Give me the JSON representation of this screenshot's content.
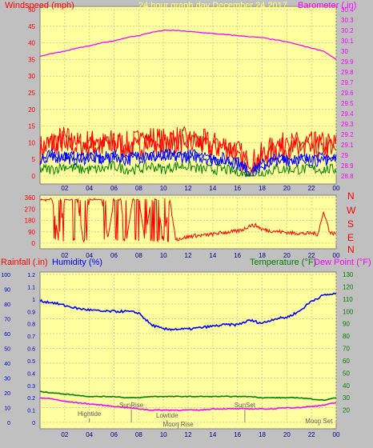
{
  "header": {
    "left_label": "Windspeed (mph)",
    "center_label": "24 hour graph day   December 24 2017",
    "right_label": "Barometer (.in)"
  },
  "panel2": {
    "compass": [
      "N",
      "W",
      "S",
      "E",
      "N"
    ]
  },
  "panel3": {
    "rain_label": "Rainfall (.in)",
    "humidity_label": "Humidity (%)",
    "temp_label": "Temperature (°F)",
    "dew_label": "Dew Point (°F)",
    "events": [
      {
        "label": "Hightide",
        "hour": 4.0
      },
      {
        "label": "SunRise",
        "hour": 7.4
      },
      {
        "label": "Lowtide",
        "hour": 10.3
      },
      {
        "label": "Moon Rise",
        "hour": 11.2
      },
      {
        "label": "SunSet",
        "hour": 16.6
      },
      {
        "label": "Moon Set",
        "hour": 22.6
      }
    ]
  },
  "colors": {
    "background": "#c0c0c0",
    "plot_bg": "#ffffa0",
    "wind": "#ff0000",
    "gust": "#0000ff",
    "avg": "#008000",
    "barometer": "#ff00ff",
    "humidity": "#0000ff",
    "temperature": "#008000",
    "dewpoint": "#ff00ff",
    "rain_axis": "#0000c0"
  },
  "chart_data": [
    {
      "type": "line",
      "title": "24 hour graph day   December 24 2017",
      "xlabel": "",
      "x_ticks": [
        "02",
        "04",
        "06",
        "08",
        "10",
        "12",
        "14",
        "16",
        "18",
        "20",
        "22",
        "00"
      ],
      "left_axis": {
        "label": "Windspeed (mph)",
        "ylim": [
          0,
          50
        ],
        "ticks": [
          0,
          5,
          10,
          15,
          20,
          25,
          30,
          35,
          40,
          45,
          50
        ]
      },
      "right_axis": {
        "label": "Barometer (.in)",
        "ylim": [
          28.8,
          30.4
        ],
        "ticks": [
          "28.8",
          "28.9",
          "29",
          "29.1",
          "29.2",
          "29.3",
          "29.4",
          "29.5",
          "29.6",
          "29.7",
          "29.8",
          "29.9",
          "30",
          "30.1",
          "30.2",
          "30.3",
          "30.4"
        ]
      },
      "series": [
        {
          "name": "Barometer",
          "axis": "right",
          "x": [
            0,
            1,
            2,
            3,
            4,
            5,
            6,
            7,
            8,
            9,
            10,
            11,
            12,
            13,
            14,
            15,
            16,
            17,
            18,
            19,
            20,
            21,
            22,
            23,
            24
          ],
          "y": [
            29.95,
            29.98,
            30.0,
            30.03,
            30.05,
            30.08,
            30.1,
            30.13,
            30.15,
            30.18,
            30.2,
            30.2,
            30.19,
            30.18,
            30.17,
            30.16,
            30.15,
            30.14,
            30.13,
            30.11,
            30.09,
            30.06,
            30.03,
            30.0,
            29.92
          ]
        },
        {
          "name": "Wind",
          "axis": "left",
          "x": [
            0,
            1,
            2,
            3,
            4,
            5,
            6,
            7,
            8,
            9,
            10,
            11,
            12,
            13,
            14,
            15,
            16,
            17,
            18,
            19,
            20,
            21,
            22,
            23,
            24
          ],
          "y": [
            8,
            10,
            11,
            9,
            10,
            9,
            10,
            9,
            10,
            11,
            10,
            11,
            10,
            10,
            9,
            9,
            7,
            3,
            6,
            8,
            9,
            9,
            9,
            9,
            9
          ]
        },
        {
          "name": "Gust",
          "axis": "left",
          "x": [
            0,
            1,
            2,
            3,
            4,
            5,
            6,
            7,
            8,
            9,
            10,
            11,
            12,
            13,
            14,
            15,
            16,
            17,
            18,
            19,
            20,
            21,
            22,
            23,
            24
          ],
          "y": [
            5,
            6,
            6,
            5,
            6,
            5,
            6,
            5,
            6,
            6,
            6,
            6,
            6,
            6,
            5,
            5,
            4,
            1,
            3,
            5,
            5,
            5,
            5,
            5,
            5
          ]
        },
        {
          "name": "Average",
          "axis": "left",
          "x": [
            0,
            1,
            2,
            3,
            4,
            5,
            6,
            7,
            8,
            9,
            10,
            11,
            12,
            13,
            14,
            15,
            16,
            17,
            18,
            19,
            20,
            21,
            22,
            23,
            24
          ],
          "y": [
            2,
            2,
            3,
            2,
            2,
            2,
            3,
            2,
            2,
            3,
            2,
            3,
            3,
            2,
            2,
            2,
            1,
            0,
            1,
            2,
            2,
            2,
            2,
            2,
            2
          ]
        }
      ]
    },
    {
      "type": "line",
      "xlabel": "",
      "x_ticks": [
        "02",
        "04",
        "06",
        "08",
        "10",
        "12",
        "14",
        "16",
        "18",
        "20",
        "22",
        "00"
      ],
      "left_axis": {
        "label": "",
        "ylim": [
          0,
          360
        ],
        "ticks": [
          0,
          90,
          180,
          270,
          360
        ]
      },
      "series": [
        {
          "name": "Wind direction",
          "x": [
            0,
            0.5,
            1,
            1.5,
            2,
            2.5,
            3,
            3.5,
            4,
            4.5,
            5,
            5.5,
            6,
            6.5,
            7,
            7.5,
            8,
            8.5,
            9,
            9.5,
            10,
            10.5,
            11,
            11.5,
            12,
            12.5,
            13,
            13.5,
            14,
            14.5,
            15,
            15.5,
            16,
            16.5,
            17,
            17.5,
            18,
            18.5,
            19,
            19.5,
            20,
            20.5,
            21,
            21.5,
            22,
            22.5,
            23,
            23.5,
            24
          ],
          "y": [
            340,
            345,
            340,
            30,
            345,
            340,
            345,
            20,
            340,
            345,
            345,
            40,
            340,
            345,
            20,
            340,
            345,
            30,
            340,
            345,
            20,
            345,
            30,
            40,
            50,
            60,
            60,
            65,
            70,
            80,
            85,
            90,
            95,
            110,
            140,
            140,
            110,
            100,
            95,
            90,
            85,
            80,
            80,
            75,
            80,
            70,
            250,
            80,
            75
          ]
        }
      ]
    },
    {
      "type": "line",
      "xlabel": "",
      "x_ticks": [
        "02",
        "04",
        "06",
        "08",
        "10",
        "12",
        "14",
        "16",
        "18",
        "20",
        "22",
        "00"
      ],
      "left_axis": {
        "label": "Rainfall (.in) / Humidity (%)",
        "ylim": [
          0,
          100
        ],
        "ticks": [
          0,
          10,
          20,
          30,
          40,
          50,
          60,
          70,
          80,
          90,
          100
        ]
      },
      "rain_axis": {
        "label": "Rainfall (.in)",
        "ylim": [
          0,
          1.2
        ],
        "ticks": [
          "0",
          "0.1",
          "0.2",
          "0.3",
          "0.4",
          "0.5",
          "0.6",
          "0.7",
          "0.8",
          "0.9",
          "1",
          "1.1",
          "1.2"
        ]
      },
      "right_axis": {
        "label": "Temperature (°F)",
        "ylim": [
          10,
          130
        ],
        "ticks": [
          20,
          30,
          40,
          50,
          60,
          70,
          80,
          90,
          100,
          110,
          120,
          130
        ]
      },
      "series": [
        {
          "name": "Humidity",
          "axis": "left",
          "x": [
            0,
            1,
            2,
            3,
            4,
            5,
            6,
            7,
            8,
            9,
            10,
            11,
            12,
            13,
            14,
            15,
            16,
            17,
            18,
            19,
            20,
            21,
            22,
            23,
            24
          ],
          "y": [
            82,
            81,
            79,
            77,
            76,
            75,
            75,
            75,
            74,
            66,
            63,
            63,
            63,
            64,
            65,
            66,
            66,
            69,
            67,
            70,
            71,
            75,
            82,
            86,
            87
          ]
        },
        {
          "name": "Temperature",
          "axis": "right",
          "x": [
            0,
            1,
            2,
            3,
            4,
            5,
            6,
            7,
            8,
            9,
            10,
            11,
            12,
            13,
            14,
            15,
            16,
            17,
            18,
            19,
            20,
            21,
            22,
            23,
            24
          ],
          "y": [
            35,
            34,
            33,
            32,
            31,
            31,
            31,
            30,
            30,
            31,
            31,
            31,
            31,
            31,
            31,
            31,
            31,
            31,
            30,
            30,
            30,
            30,
            29,
            28,
            30
          ]
        },
        {
          "name": "Dew Point",
          "axis": "right",
          "x": [
            0,
            1,
            2,
            3,
            4,
            5,
            6,
            7,
            8,
            9,
            10,
            11,
            12,
            13,
            14,
            15,
            16,
            17,
            18,
            19,
            20,
            21,
            22,
            23,
            24
          ],
          "y": [
            30,
            29,
            27,
            26,
            25,
            24,
            23,
            22,
            21,
            20,
            20,
            20,
            20,
            20,
            21,
            21,
            21,
            21,
            21,
            21,
            22,
            22,
            23,
            24,
            26
          ]
        }
      ]
    }
  ]
}
